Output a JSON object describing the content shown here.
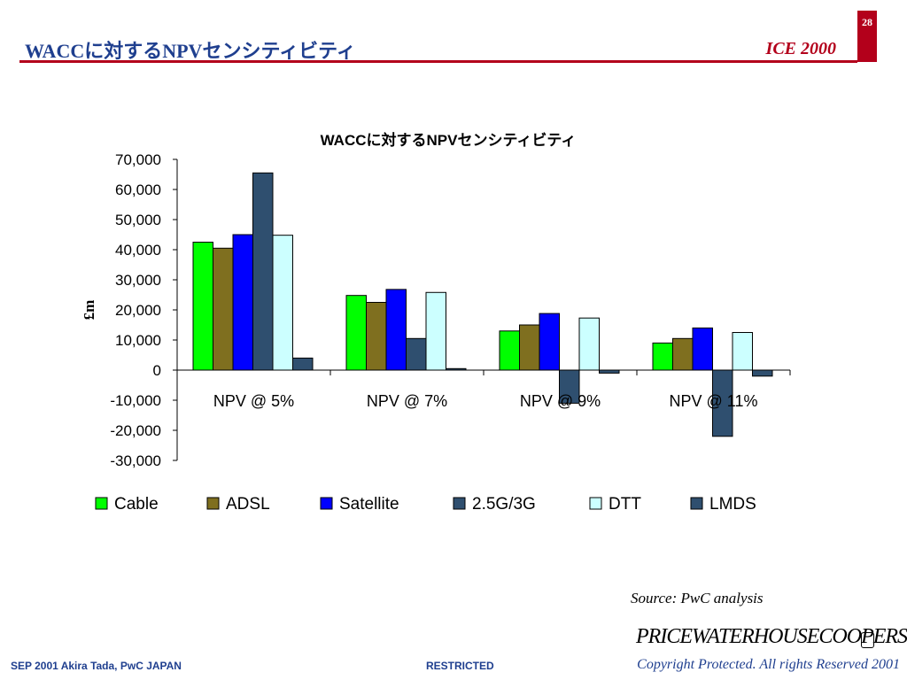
{
  "header": {
    "page_number": "28",
    "title": "WACCに対するNPVセンシティビティ",
    "event": "ICE 2000"
  },
  "footer": {
    "left": "SEP 2001  Akira Tada, PwC JAPAN",
    "center": "RESTRICTED",
    "copyright": "Copyright Protected. All rights Reserved 2001",
    "logo_text": "PRICEWATERHOUSECOOPERS"
  },
  "source_note": "Source: PwC analysis",
  "chart_data": {
    "type": "bar",
    "title": "WACCに対するNPVセンシティビティ",
    "ylabel": "£m",
    "xlabel": "",
    "ylim": [
      -30000,
      70000
    ],
    "ytick_step": 10000,
    "ytick_labels": [
      "70,000",
      "60,000",
      "50,000",
      "40,000",
      "30,000",
      "20,000",
      "10,000",
      "0",
      "-10,000",
      "-20,000",
      "-30,000"
    ],
    "categories": [
      "NPV @ 5%",
      "NPV @ 7%",
      "NPV @ 9%",
      "NPV @ 11%"
    ],
    "legend_position": "bottom",
    "grid": false,
    "series": [
      {
        "name": "Cable",
        "color": "#00ff00",
        "values": [
          42500,
          24800,
          13000,
          9000
        ]
      },
      {
        "name": "ADSL",
        "color": "#7f6f1f",
        "values": [
          40500,
          22500,
          15000,
          10500
        ]
      },
      {
        "name": "Satellite",
        "color": "#0000ff",
        "values": [
          45000,
          26800,
          18800,
          14000
        ]
      },
      {
        "name": "2.5G/3G",
        "color": "#2f4f6f",
        "values": [
          65500,
          10500,
          -11000,
          -22000
        ]
      },
      {
        "name": "DTT",
        "color": "#ccffff",
        "values": [
          44800,
          25800,
          17300,
          12500
        ]
      },
      {
        "name": "LMDS",
        "color": "#2f4f6f",
        "values": [
          4000,
          500,
          -1000,
          -2000
        ]
      }
    ]
  }
}
